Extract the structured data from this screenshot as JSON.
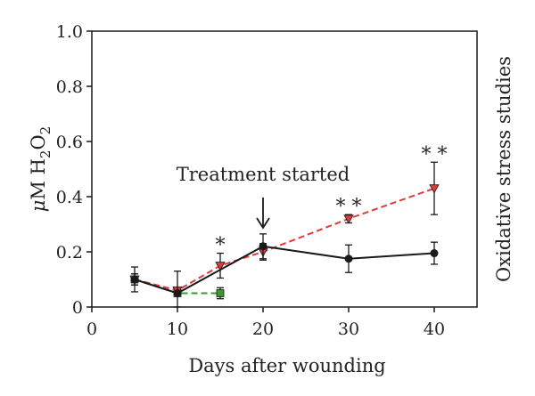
{
  "chart_data": {
    "type": "line",
    "xlabel": "Days after wounding",
    "ylabel_parts": {
      "mu": "μ",
      "unit": "M H",
      "sub1": "2",
      "mid": "O",
      "sub2": "2"
    },
    "right_label": "Oxidative stress studies",
    "xlim": [
      0,
      45
    ],
    "ylim": [
      0,
      1.0
    ],
    "x_ticks": [
      0,
      10,
      20,
      30,
      40
    ],
    "y_ticks": [
      0,
      0.2,
      0.4,
      0.6,
      0.8,
      1.0
    ],
    "y_tick_labels": [
      "0",
      "0.2",
      "0.4",
      "0.6",
      "0.8",
      "1.0"
    ],
    "series": [
      {
        "key": "green",
        "color": "#3a9a2e",
        "dash": "dashed",
        "marker": "square",
        "points": [
          {
            "x": 5,
            "y": 0.1,
            "err": 0.02
          },
          {
            "x": 10,
            "y": 0.05,
            "err": 0.01
          },
          {
            "x": 15,
            "y": 0.05,
            "err": 0.02
          }
        ]
      },
      {
        "key": "red",
        "color": "#e03a3a",
        "dash": "dashed",
        "marker": "triangle-down",
        "points": [
          {
            "x": 5,
            "y": 0.1,
            "err": 0.02
          },
          {
            "x": 10,
            "y": 0.06,
            "err": 0.01
          },
          {
            "x": 15,
            "y": 0.15,
            "err": 0.045
          },
          {
            "x": 20,
            "y": 0.2,
            "err": 0.03
          },
          {
            "x": 30,
            "y": 0.32,
            "err": 0.015
          },
          {
            "x": 40,
            "y": 0.43,
            "err": 0.095
          }
        ]
      },
      {
        "key": "black",
        "color": "#1a1a1a",
        "dash": "solid",
        "marker": "circle",
        "points": [
          {
            "x": 5,
            "y": 0.1,
            "err": 0.045
          },
          {
            "x": 10,
            "y": 0.05,
            "err": 0.08
          },
          {
            "x": 20,
            "y": 0.22,
            "err": 0.045
          },
          {
            "x": 30,
            "y": 0.175,
            "err": 0.05
          },
          {
            "x": 40,
            "y": 0.195,
            "err": 0.04
          }
        ]
      }
    ],
    "annotations": {
      "treatment": {
        "text": "Treatment started",
        "x": 20
      },
      "stars": [
        {
          "x": 15,
          "text": "*"
        },
        {
          "x": 30,
          "text": "* *"
        },
        {
          "x": 40,
          "text": "* *"
        }
      ]
    }
  }
}
